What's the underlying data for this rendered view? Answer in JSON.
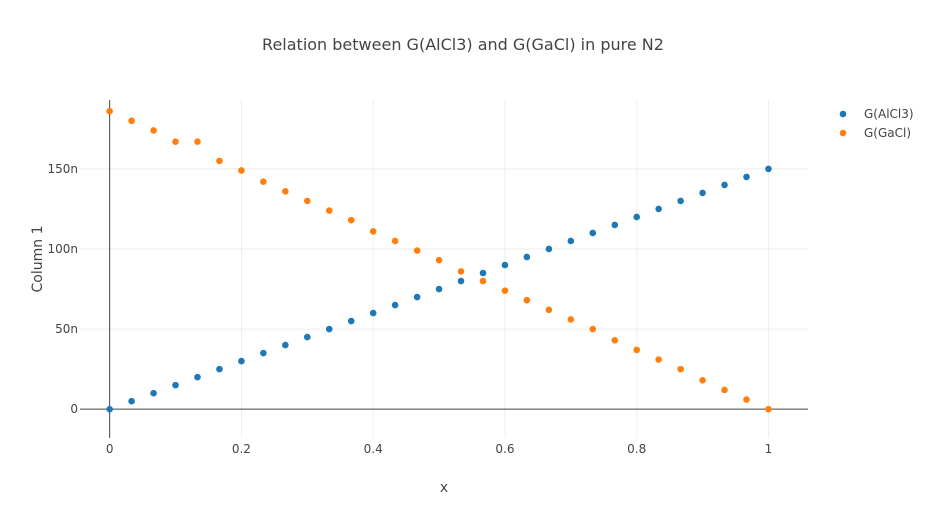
{
  "chart_data": {
    "type": "scatter",
    "title": "Relation between G(AlCl3) and G(GaCl) in pure N2",
    "xlabel": "x",
    "ylabel": "Column 1",
    "xlim": [
      -0.045,
      1.06
    ],
    "ylim": [
      -1.8e-08,
      1.93e-07
    ],
    "x_ticks": [
      {
        "value": 0,
        "label": "0"
      },
      {
        "value": 0.2,
        "label": "0.2"
      },
      {
        "value": 0.4,
        "label": "0.4"
      },
      {
        "value": 0.6,
        "label": "0.6"
      },
      {
        "value": 0.8,
        "label": "0.8"
      },
      {
        "value": 1,
        "label": "1"
      }
    ],
    "y_ticks": [
      {
        "value": 0,
        "label": "0"
      },
      {
        "value": 5e-08,
        "label": "50n"
      },
      {
        "value": 1e-07,
        "label": "100n"
      },
      {
        "value": 1.5e-07,
        "label": "150n"
      }
    ],
    "grid": true,
    "legend_position": "top-right",
    "x": [
      0,
      0.0333,
      0.0667,
      0.1,
      0.1333,
      0.1667,
      0.2,
      0.2333,
      0.2667,
      0.3,
      0.3333,
      0.3667,
      0.4,
      0.4333,
      0.4667,
      0.5,
      0.5333,
      0.5667,
      0.6,
      0.6333,
      0.6667,
      0.7,
      0.7333,
      0.7667,
      0.8,
      0.8333,
      0.8667,
      0.9,
      0.9333,
      0.9667,
      1
    ],
    "series": [
      {
        "name": "G(AlCl3)",
        "color": "#1f77b4",
        "values": [
          0,
          5e-09,
          1e-08,
          1.5e-08,
          2e-08,
          2.5e-08,
          3e-08,
          3.5e-08,
          4e-08,
          4.5e-08,
          5e-08,
          5.5e-08,
          6e-08,
          6.5e-08,
          7e-08,
          7.5e-08,
          8e-08,
          8.5e-08,
          9e-08,
          9.5e-08,
          1e-07,
          1.05e-07,
          1.1e-07,
          1.15e-07,
          1.2e-07,
          1.25e-07,
          1.3e-07,
          1.35e-07,
          1.4e-07,
          1.45e-07,
          1.5e-07
        ]
      },
      {
        "name": "G(GaCl)",
        "color": "#ff7f0e",
        "values": [
          1.86e-07,
          1.8e-07,
          1.74e-07,
          1.67e-07,
          1.67e-07,
          1.55e-07,
          1.49e-07,
          1.42e-07,
          1.36e-07,
          1.3e-07,
          1.24e-07,
          1.18e-07,
          1.11e-07,
          1.05e-07,
          9.9e-08,
          9.3e-08,
          8.6e-08,
          8e-08,
          7.4e-08,
          6.8e-08,
          6.2e-08,
          5.6e-08,
          5e-08,
          4.3e-08,
          3.7e-08,
          3.1e-08,
          2.5e-08,
          1.8e-08,
          1.2e-08,
          6e-09,
          0
        ]
      }
    ]
  }
}
